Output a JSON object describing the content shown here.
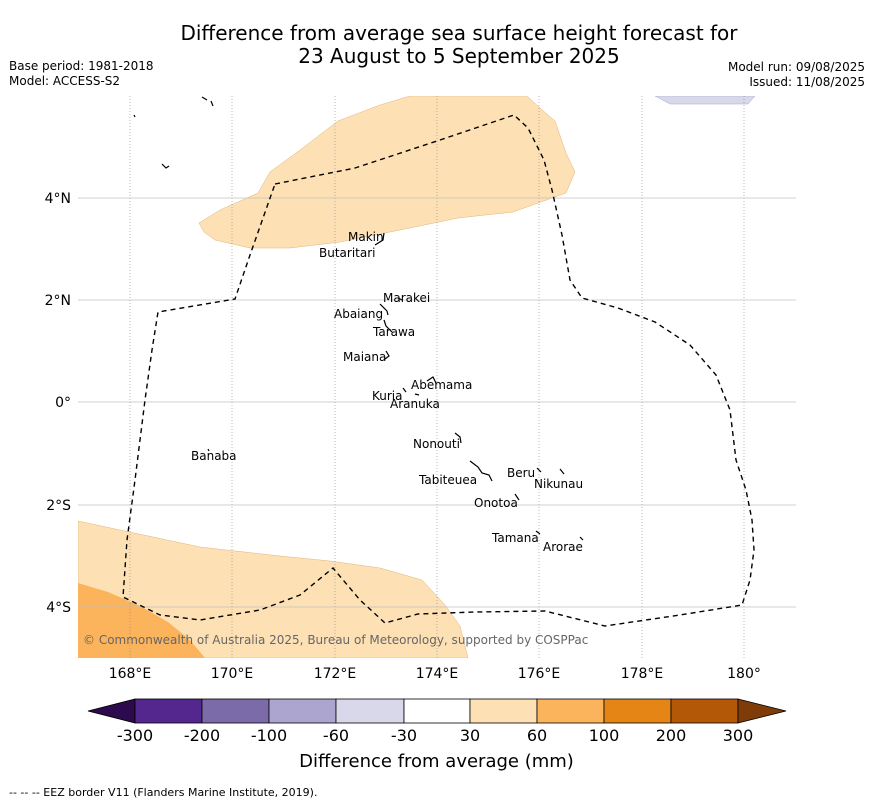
{
  "header": {
    "title_line1": "Difference from average sea surface height forecast for",
    "title_line2": "23 August to 5 September 2025",
    "base_period": "Base period: 1981-2018",
    "model": "Model: ACCESS-S2",
    "model_run": "Model run: 09/08/2025",
    "issued": "Issued: 11/08/2025"
  },
  "map": {
    "lon_labels": [
      "168°E",
      "170°E",
      "172°E",
      "174°E",
      "176°E",
      "178°E",
      "180°"
    ],
    "lat_labels": [
      "4°N",
      "2°N",
      "0°",
      "2°S",
      "4°S"
    ],
    "copyright": "© Commonwealth of Australia 2025, Bureau of Meteorology, supported by COSPPac",
    "islands": [
      {
        "name": "Makin"
      },
      {
        "name": "Butaritari"
      },
      {
        "name": "Marakei"
      },
      {
        "name": "Abaiang"
      },
      {
        "name": "Tarawa"
      },
      {
        "name": "Maiana"
      },
      {
        "name": "Abemama"
      },
      {
        "name": "Kuria"
      },
      {
        "name": "Aranuka"
      },
      {
        "name": "Banaba"
      },
      {
        "name": "Nonouti"
      },
      {
        "name": "Beru"
      },
      {
        "name": "Tabiteuea"
      },
      {
        "name": "Nikunau"
      },
      {
        "name": "Onotoa"
      },
      {
        "name": "Tamana"
      },
      {
        "name": "Arorae"
      }
    ]
  },
  "colorbar": {
    "title": "Difference from average (mm)",
    "tick_labels": [
      "-300",
      "-200",
      "-100",
      "-60",
      "-30",
      "30",
      "60",
      "100",
      "200",
      "300"
    ],
    "colors": [
      "#2d0a4e",
      "#54278f",
      "#7b6ba8",
      "#aba5d0",
      "#d8d8ea",
      "#ffffff",
      "#fde1b5",
      "#fbb35c",
      "#e58516",
      "#b35806",
      "#7f3b08"
    ]
  },
  "footer": {
    "eez_note": "--  --  -- EEZ border V11 (Flanders Marine Institute, 2019)."
  }
}
